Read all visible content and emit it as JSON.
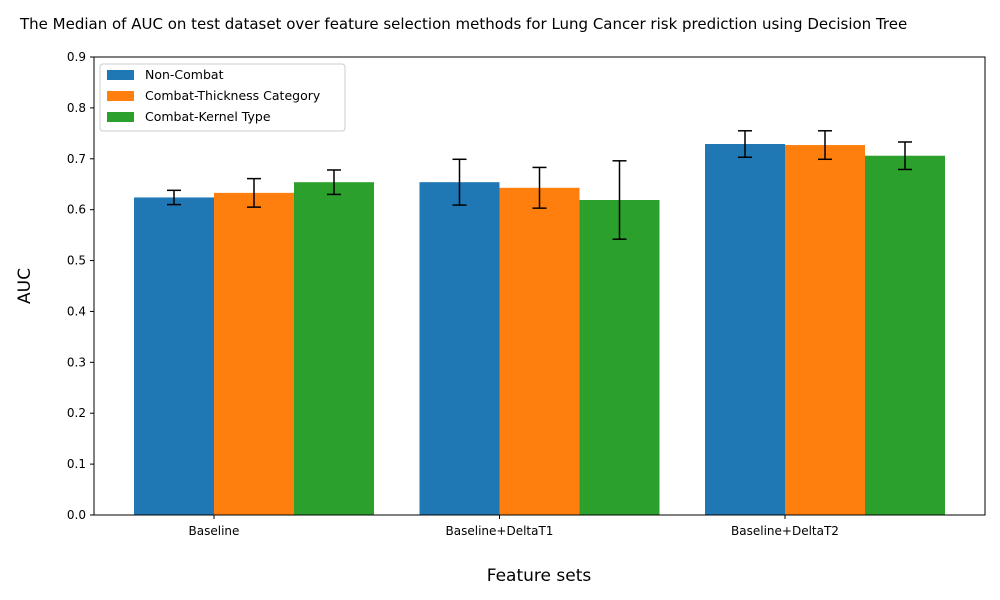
{
  "chart_data": {
    "type": "bar",
    "title": "The Median of AUC on test dataset over feature selection methods for Lung Cancer risk prediction using Decision Tree",
    "xlabel": "Feature sets",
    "ylabel": "AUC",
    "ylim": [
      0,
      0.9
    ],
    "yticks": [
      0.0,
      0.1,
      0.2,
      0.3,
      0.4,
      0.5,
      0.6,
      0.7,
      0.8,
      0.9
    ],
    "ytick_labels": [
      "0.0",
      "0.1",
      "0.2",
      "0.3",
      "0.4",
      "0.5",
      "0.6",
      "0.7",
      "0.8",
      "0.9"
    ],
    "categories": [
      "Baseline",
      "Baseline+DeltaT1",
      "Baseline+DeltaT2"
    ],
    "grid": false,
    "legend_position": "top-left",
    "series": [
      {
        "name": "Non-Combat",
        "color": "#1f77b4",
        "values": [
          0.624,
          0.654,
          0.729
        ],
        "errors": [
          0.014,
          0.045,
          0.026
        ]
      },
      {
        "name": "Combat-Thickness Category",
        "color": "#ff7f0e",
        "values": [
          0.633,
          0.643,
          0.727
        ],
        "errors": [
          0.028,
          0.04,
          0.028
        ]
      },
      {
        "name": "Combat-Kernel Type",
        "color": "#2ca02c",
        "values": [
          0.654,
          0.619,
          0.706
        ],
        "errors": [
          0.024,
          0.077,
          0.027
        ]
      }
    ]
  }
}
